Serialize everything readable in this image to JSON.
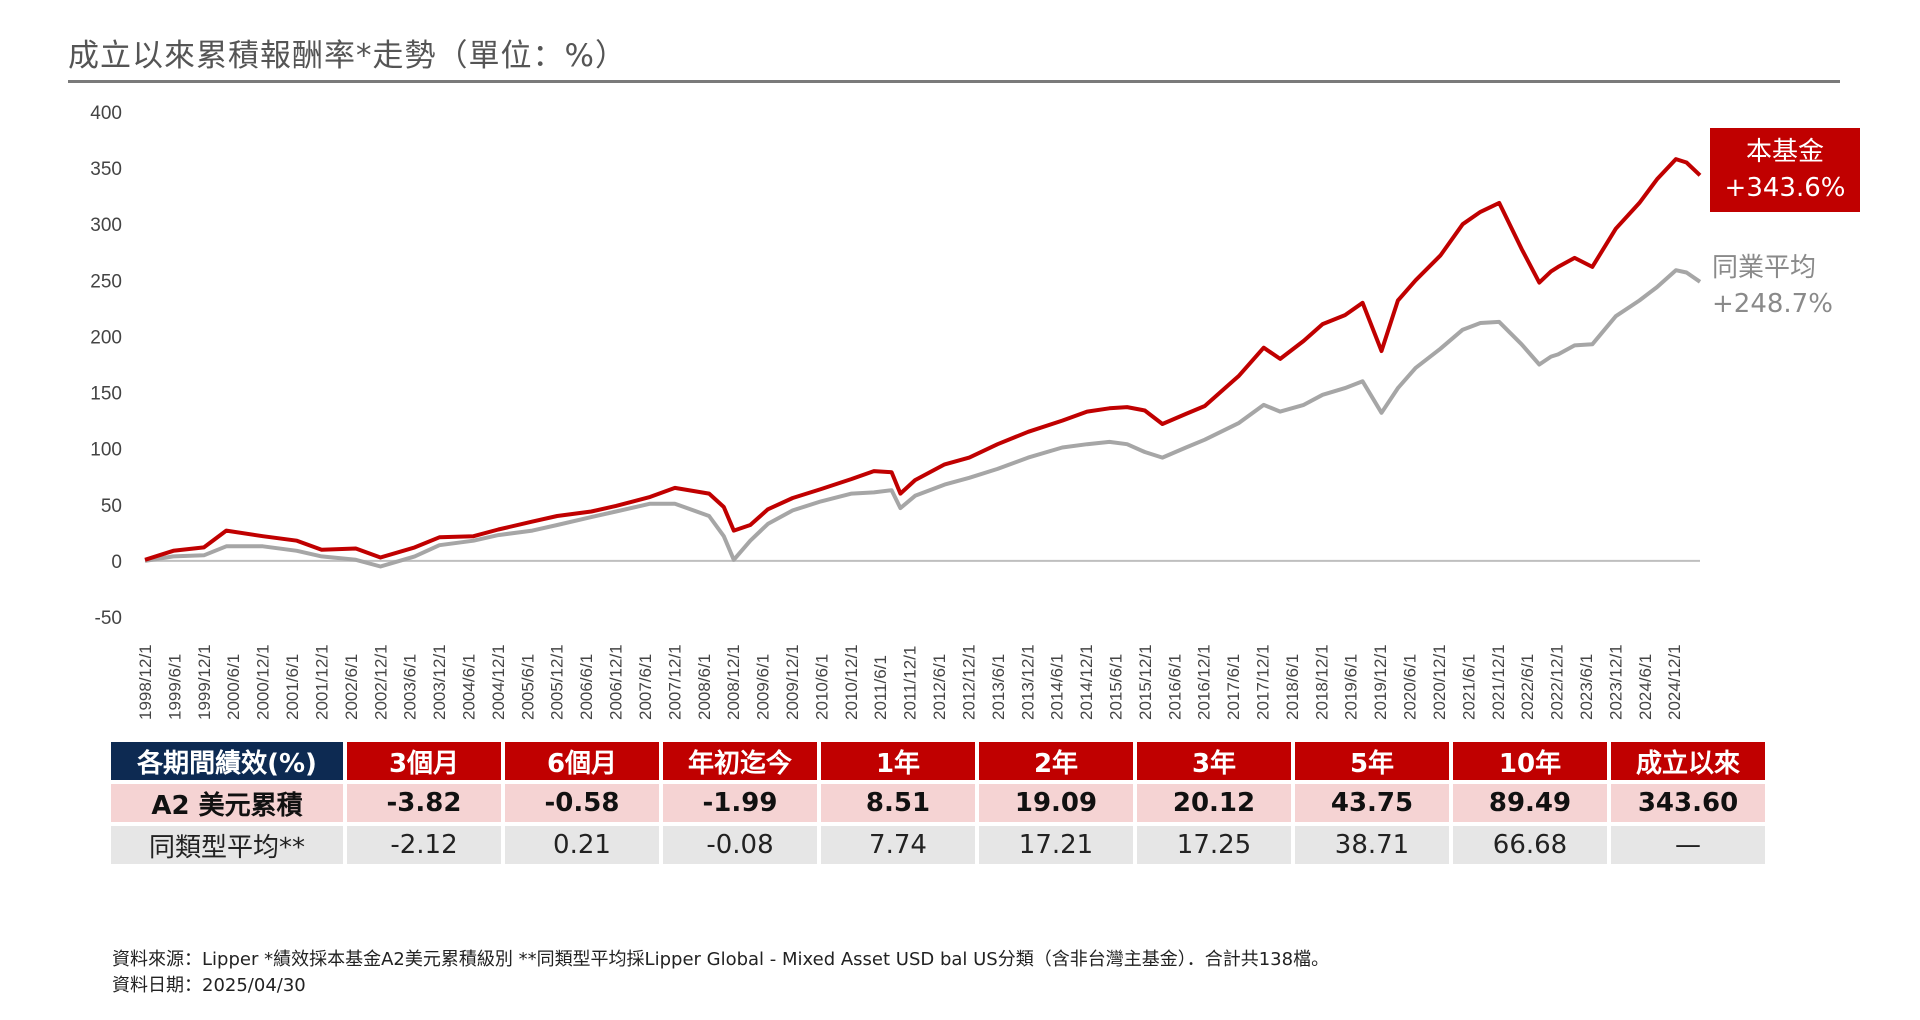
{
  "title": "成立以來累積報酬率*走勢（單位：%）",
  "chart_data": {
    "type": "line",
    "title": "成立以來累積報酬率*走勢（單位：%）",
    "ylim": [
      -50,
      400
    ],
    "yticks": [
      "400",
      "350",
      "300",
      "250",
      "200",
      "150",
      "100",
      "50",
      "0",
      "-50"
    ],
    "xticks": [
      "1998/12/1",
      "1999/6/1",
      "1999/12/1",
      "2000/6/1",
      "2000/12/1",
      "2001/6/1",
      "2001/12/1",
      "2002/6/1",
      "2002/12/1",
      "2003/6/1",
      "2003/12/1",
      "2004/6/1",
      "2004/12/1",
      "2005/6/1",
      "2005/12/1",
      "2006/6/1",
      "2006/12/1",
      "2007/6/1",
      "2007/12/1",
      "2008/6/1",
      "2008/12/1",
      "2009/6/1",
      "2009/12/1",
      "2010/6/1",
      "2010/12/1",
      "2011/6/1",
      "2011/12/1",
      "2012/6/1",
      "2012/12/1",
      "2013/6/1",
      "2013/12/1",
      "2014/6/1",
      "2014/12/1",
      "2015/6/1",
      "2015/12/1",
      "2016/6/1",
      "2016/12/1",
      "2017/6/1",
      "2017/12/1",
      "2018/6/1",
      "2018/12/1",
      "2019/6/1",
      "2019/12/1",
      "2020/6/1",
      "2020/12/1",
      "2021/6/1",
      "2021/12/1",
      "2022/6/1",
      "2022/12/1",
      "2023/6/1",
      "2023/12/1",
      "2024/6/1",
      "2024/12/1"
    ],
    "grid": false,
    "series": [
      {
        "name": "本基金",
        "color": "#c00000",
        "end_label": "+343.6%",
        "x": [
          1998.92,
          1999.4,
          1999.92,
          2000.3,
          2000.92,
          2001.5,
          2001.92,
          2002.5,
          2002.92,
          2003.5,
          2003.92,
          2004.5,
          2004.92,
          2005.5,
          2005.92,
          2006.5,
          2006.92,
          2007.5,
          2007.92,
          2008.5,
          2008.75,
          2008.92,
          2009.2,
          2009.5,
          2009.92,
          2010.4,
          2010.92,
          2011.3,
          2011.6,
          2011.75,
          2012.0,
          2012.5,
          2012.92,
          2013.4,
          2013.92,
          2014.5,
          2014.92,
          2015.3,
          2015.6,
          2015.9,
          2016.2,
          2016.6,
          2016.92,
          2017.5,
          2017.92,
          2018.2,
          2018.6,
          2018.92,
          2019.3,
          2019.6,
          2019.92,
          2020.2,
          2020.5,
          2020.92,
          2021.3,
          2021.6,
          2021.92,
          2022.3,
          2022.6,
          2022.8,
          2022.92,
          2023.2,
          2023.5,
          2023.9,
          2024.3,
          2024.6,
          2024.92,
          2025.1,
          2025.33
        ],
        "y": [
          1,
          9,
          12,
          27,
          22,
          18,
          10,
          11,
          3,
          12,
          21,
          22,
          28,
          35,
          40,
          44,
          49,
          57,
          65,
          60,
          48,
          27,
          32,
          46,
          56,
          64,
          73,
          80,
          79,
          60,
          72,
          86,
          92,
          104,
          115,
          125,
          133,
          136,
          137,
          134,
          122,
          131,
          138,
          165,
          190,
          180,
          196,
          211,
          219,
          230,
          187,
          232,
          250,
          272,
          300,
          311,
          319,
          278,
          248,
          258,
          262,
          270,
          262,
          296,
          319,
          340,
          358,
          355,
          343.6
        ]
      },
      {
        "name": "同業平均",
        "color": "#a6a6a6",
        "end_label": "+248.7%",
        "x": [
          1998.92,
          1999.4,
          1999.92,
          2000.3,
          2000.92,
          2001.5,
          2001.92,
          2002.5,
          2002.92,
          2003.5,
          2003.92,
          2004.5,
          2004.92,
          2005.5,
          2005.92,
          2006.5,
          2006.92,
          2007.5,
          2007.92,
          2008.5,
          2008.75,
          2008.92,
          2009.2,
          2009.5,
          2009.92,
          2010.4,
          2010.92,
          2011.3,
          2011.6,
          2011.75,
          2012.0,
          2012.5,
          2012.92,
          2013.4,
          2013.92,
          2014.5,
          2014.92,
          2015.3,
          2015.6,
          2015.9,
          2016.2,
          2016.6,
          2016.92,
          2017.5,
          2017.92,
          2018.2,
          2018.6,
          2018.92,
          2019.3,
          2019.6,
          2019.92,
          2020.2,
          2020.5,
          2020.92,
          2021.3,
          2021.6,
          2021.92,
          2022.3,
          2022.6,
          2022.8,
          2022.92,
          2023.2,
          2023.5,
          2023.9,
          2024.3,
          2024.6,
          2024.92,
          2025.1,
          2025.33
        ],
        "y": [
          0,
          4,
          5,
          13,
          13,
          9,
          4,
          1,
          -5,
          4,
          14,
          18,
          23,
          27,
          32,
          39,
          44,
          51,
          51,
          40,
          22,
          1,
          18,
          33,
          45,
          53,
          60,
          61,
          63,
          47,
          58,
          68,
          74,
          82,
          92,
          101,
          104,
          106,
          104,
          97,
          92,
          101,
          108,
          123,
          139,
          133,
          139,
          148,
          154,
          160,
          132,
          154,
          172,
          189,
          206,
          212,
          213,
          193,
          175,
          182,
          184,
          192,
          193,
          218,
          232,
          244,
          259,
          257,
          248.7
        ]
      }
    ]
  },
  "callouts": {
    "fund": {
      "name": "本基金",
      "value": "+343.6%"
    },
    "peer": {
      "name": "同業平均",
      "value": "+248.7%"
    }
  },
  "perf_table": {
    "headers": [
      "各期間績效(%)",
      "3個月",
      "6個月",
      "年初迄今",
      "1年",
      "2年",
      "3年",
      "5年",
      "10年",
      "成立以來"
    ],
    "fund_row": [
      "A2 美元累積",
      "-3.82",
      "-0.58",
      "-1.99",
      "8.51",
      "19.09",
      "20.12",
      "43.75",
      "89.49",
      "343.60"
    ],
    "peer_row": [
      "同類型平均**",
      "-2.12",
      "0.21",
      "-0.08",
      "7.74",
      "17.21",
      "17.25",
      "38.71",
      "66.68",
      "—"
    ]
  },
  "footer": {
    "source": "資料來源：Lipper *績效採本基金A2美元累積級別 **同類型平均採Lipper Global - Mixed Asset USD bal US分類（含非台灣主基金）．合計共138檔。",
    "date": "資料日期：2025/04/30"
  }
}
